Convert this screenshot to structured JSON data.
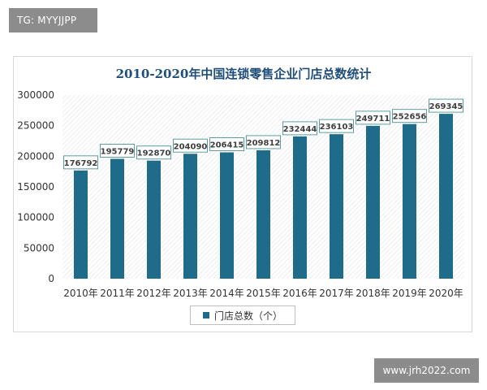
{
  "tag_text": "TG: MYYJJPP",
  "watermark_text": "www.jrh2022.com",
  "colors": {
    "bar": "#1f6b8a",
    "title": "#1f4e79",
    "axis_text": "#333333",
    "label_border": "#5f9ea0"
  },
  "chart_data": {
    "type": "bar",
    "title": "2010-2020年中国连锁零售企业门店总数统计",
    "categories": [
      "2010年",
      "2011年",
      "2012年",
      "2013年",
      "2014年",
      "2015年",
      "2016年",
      "2017年",
      "2018年",
      "2019年",
      "2020年"
    ],
    "series": [
      {
        "name": "门店总数（个）",
        "values": [
          176792,
          195779,
          192870,
          204090,
          206415,
          209812,
          232444,
          236103,
          249711,
          252656,
          269345
        ]
      }
    ],
    "yticks": [
      "300000",
      "250000",
      "200000",
      "150000",
      "100000",
      "50000",
      "0"
    ],
    "ylim": [
      0,
      300000
    ],
    "grid": false,
    "legend_position": "bottom"
  }
}
